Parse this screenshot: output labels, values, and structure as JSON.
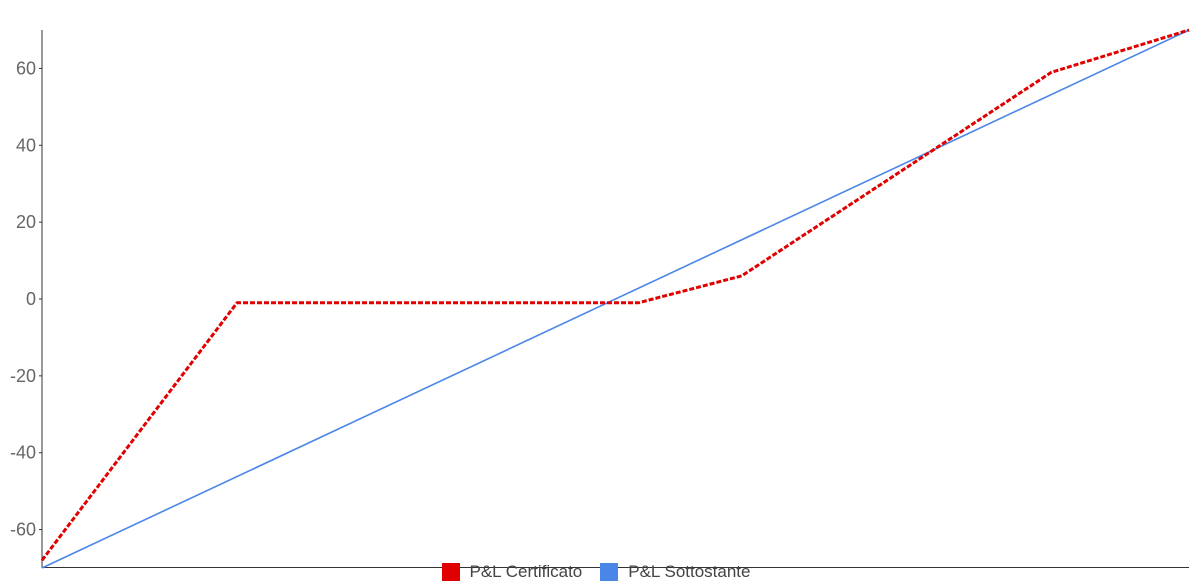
{
  "chart_data": {
    "type": "line",
    "title": "",
    "xlabel": "",
    "ylabel": "",
    "ylim": [
      -70,
      70
    ],
    "yticks": [
      "60",
      "40",
      "20",
      "0",
      "-20",
      "-40",
      "-60"
    ],
    "grid": false,
    "legend_position": "bottom",
    "series": [
      {
        "name": "P&L Certificato",
        "color": "#e00000",
        "style": "dashed",
        "points": [
          [
            0,
            -68
          ],
          [
            17,
            -1
          ],
          [
            52,
            -1
          ],
          [
            61,
            6
          ],
          [
            88,
            59
          ],
          [
            100,
            70
          ]
        ]
      },
      {
        "name": "P&L Sottostante",
        "color": "#4a86e8",
        "style": "solid",
        "points": [
          [
            0,
            -70
          ],
          [
            100,
            70
          ]
        ]
      }
    ]
  }
}
